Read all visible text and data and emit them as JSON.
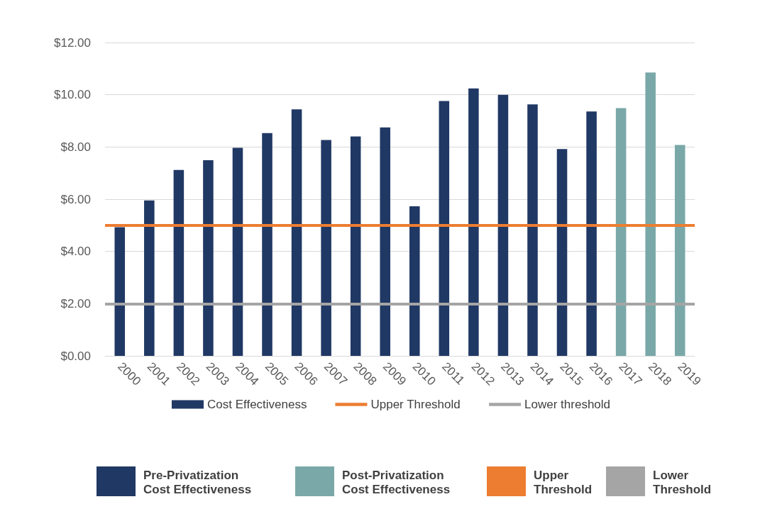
{
  "chart_data": {
    "type": "bar",
    "categories": [
      "2000",
      "2001",
      "2002",
      "2003",
      "2004",
      "2005",
      "2006",
      "2007",
      "2008",
      "2009",
      "2010",
      "2011",
      "2012",
      "2013",
      "2014",
      "2015",
      "2016",
      "2017",
      "2018",
      "2019"
    ],
    "series": [
      {
        "name": "Cost Effectiveness",
        "color": "#203864",
        "colors": [
          "#203864",
          "#203864",
          "#203864",
          "#203864",
          "#203864",
          "#203864",
          "#203864",
          "#203864",
          "#203864",
          "#203864",
          "#203864",
          "#203864",
          "#203864",
          "#203864",
          "#203864",
          "#203864",
          "#203864",
          "#7aa8a8",
          "#7aa8a8",
          "#7aa8a8"
        ],
        "values": [
          4.93,
          5.95,
          7.12,
          7.49,
          7.97,
          8.53,
          9.44,
          8.27,
          8.4,
          8.75,
          5.73,
          9.76,
          10.24,
          10.0,
          9.63,
          7.92,
          9.36,
          9.49,
          10.85,
          8.08
        ]
      }
    ],
    "ylim": [
      0,
      12
    ],
    "yticks": [
      {
        "value": 0,
        "label": "$0.00"
      },
      {
        "value": 2,
        "label": "$2.00"
      },
      {
        "value": 4,
        "label": "$4.00"
      },
      {
        "value": 6,
        "label": "$6.00"
      },
      {
        "value": 8,
        "label": "$8.00"
      },
      {
        "value": 10,
        "label": "$10.00"
      },
      {
        "value": 12,
        "label": "$12.00"
      }
    ],
    "ref_lines": [
      {
        "axis": "y",
        "value": 5,
        "label": "Upper Threshold",
        "color": "#ed7d31"
      },
      {
        "axis": "y",
        "value": 2,
        "label": "Lower threshold",
        "color": "#a5a5a5"
      }
    ],
    "annotations": [
      "Pre-Privatization\nCost Effectiveness",
      "Post-Privatization\nCost Effectiveness",
      "Upper\nThreshold",
      "Lower\nThreshold"
    ],
    "grid": "y",
    "legend": "bottom"
  }
}
